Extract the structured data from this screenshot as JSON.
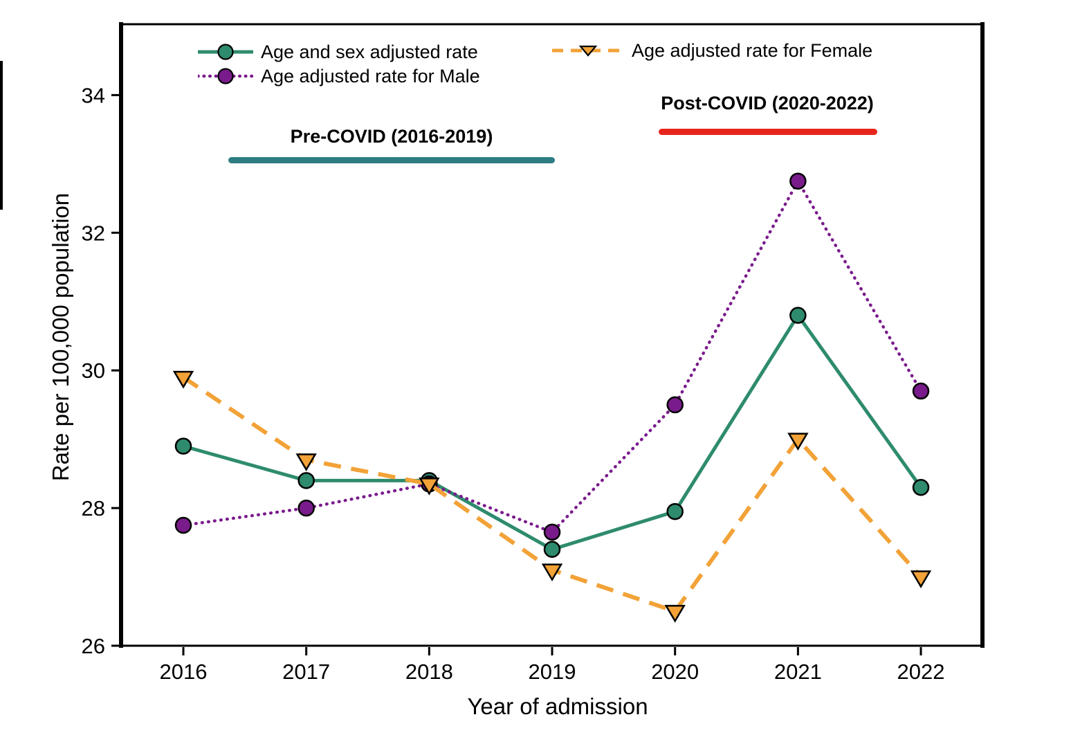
{
  "figure": {
    "background": "#ffffff",
    "text_color": "#000000"
  },
  "legend": {
    "items": [
      {
        "label": "Age and sex adjusted rate",
        "slug": "adjusted",
        "marker": "circle",
        "line": "solid",
        "color": "#2e8b6e"
      },
      {
        "label": "Age adjusted rate for Female",
        "slug": "female",
        "marker": "triangle-down",
        "line": "dashed",
        "color": "#f2a237"
      },
      {
        "label": "Age adjusted rate for Male",
        "slug": "male",
        "marker": "circle",
        "line": "dotted",
        "color": "#7a1b8c"
      }
    ]
  },
  "annotations": [
    {
      "label": "Pre-COVID (2016-2019)",
      "bar_color": "#2e7d82"
    },
    {
      "label": "Post-COVID (2020-2022)",
      "bar_color": "#e8251d"
    }
  ],
  "chart_data": {
    "type": "line",
    "title": "",
    "xlabel": "Year of admission",
    "ylabel": "Rate per 100,000 population",
    "x": [
      2016,
      2017,
      2018,
      2019,
      2020,
      2021,
      2022
    ],
    "y_ticks": [
      26,
      28,
      30,
      32,
      34
    ],
    "ylim": [
      26,
      35
    ],
    "grid": false,
    "legend_position": "top-left-inside",
    "series": [
      {
        "name": "Age and sex adjusted rate",
        "slug": "adjusted",
        "color": "#2e8b6e",
        "line": "solid",
        "marker": "circle",
        "values": [
          28.9,
          28.4,
          28.4,
          27.4,
          27.95,
          30.8,
          28.3
        ]
      },
      {
        "name": "Age adjusted rate for Male",
        "slug": "male",
        "color": "#7a1b8c",
        "line": "dotted",
        "marker": "circle",
        "values": [
          27.75,
          28.0,
          28.35,
          27.65,
          29.5,
          32.75,
          29.7
        ]
      },
      {
        "name": "Age adjusted rate for Female",
        "slug": "female",
        "color": "#f2a237",
        "line": "dashed",
        "marker": "triangle-down",
        "values": [
          29.9,
          28.7,
          28.35,
          27.1,
          26.5,
          29.0,
          27.0
        ]
      }
    ]
  }
}
